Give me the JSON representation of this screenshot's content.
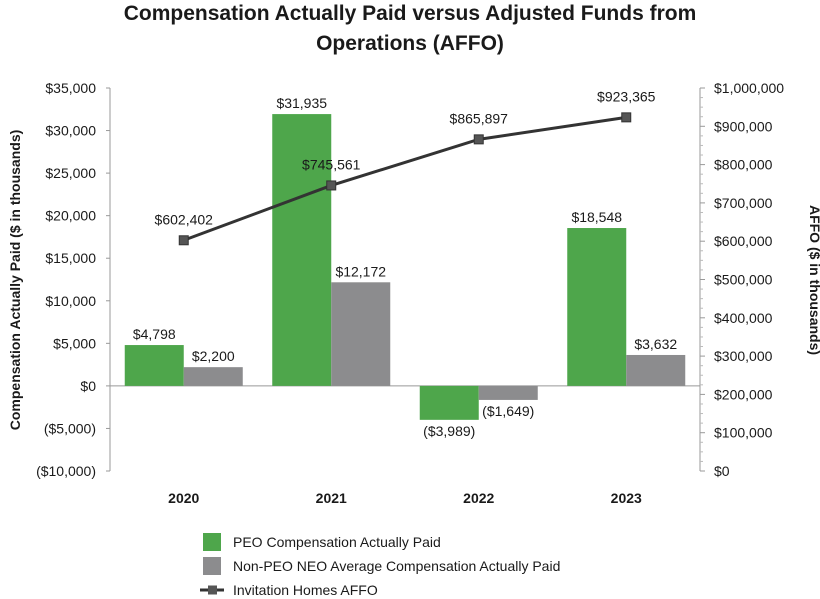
{
  "chart_data": {
    "type": "bar",
    "title_lines": [
      "Compensation Actually Paid versus Adjusted Funds from",
      "Operations (AFFO)"
    ],
    "categories": [
      "2020",
      "2021",
      "2022",
      "2023"
    ],
    "ylabel": "Compensation Actually Paid ($ in thousands)",
    "y2label": "AFFO ($ in thousands)",
    "ylim": [
      -10000,
      35000
    ],
    "y2lim": [
      0,
      1000000
    ],
    "yticks": [
      -10000,
      -5000,
      0,
      5000,
      10000,
      15000,
      20000,
      25000,
      30000,
      35000
    ],
    "ytick_labels": [
      "($10,000)",
      "($5,000)",
      "$0",
      "$5,000",
      "$10,000",
      "$15,000",
      "$20,000",
      "$25,000",
      "$30,000",
      "$35,000"
    ],
    "y2ticks": [
      0,
      100000,
      200000,
      300000,
      400000,
      500000,
      600000,
      700000,
      800000,
      900000,
      1000000
    ],
    "y2tick_labels": [
      "$0",
      "$100,000",
      "$200,000",
      "$300,000",
      "$400,000",
      "$500,000",
      "$600,000",
      "$700,000",
      "$800,000",
      "$900,000",
      "$1,000,000"
    ],
    "series": [
      {
        "name": "PEO Compensation Actually Paid",
        "type": "bar",
        "axis": "left",
        "color": "#4ea64b",
        "values": [
          4798,
          31935,
          -3989,
          18548
        ],
        "labels": [
          "$4,798",
          "$31,935",
          "($3,989)",
          "$18,548"
        ]
      },
      {
        "name": "Non-PEO NEO Average Compensation Actually Paid",
        "type": "bar",
        "axis": "left",
        "color": "#8c8c8e",
        "values": [
          2200,
          12172,
          -1649,
          3632
        ],
        "labels": [
          "$2,200",
          "$12,172",
          "($1,649)",
          "$3,632"
        ]
      },
      {
        "name": "Invitation Homes AFFO",
        "type": "line",
        "axis": "right",
        "color": "#333333",
        "values": [
          602402,
          745561,
          865897,
          923365
        ],
        "labels": [
          "$602,402",
          "$745,561",
          "$865,897",
          "$923,365"
        ]
      }
    ],
    "legend_position": "bottom-center"
  }
}
